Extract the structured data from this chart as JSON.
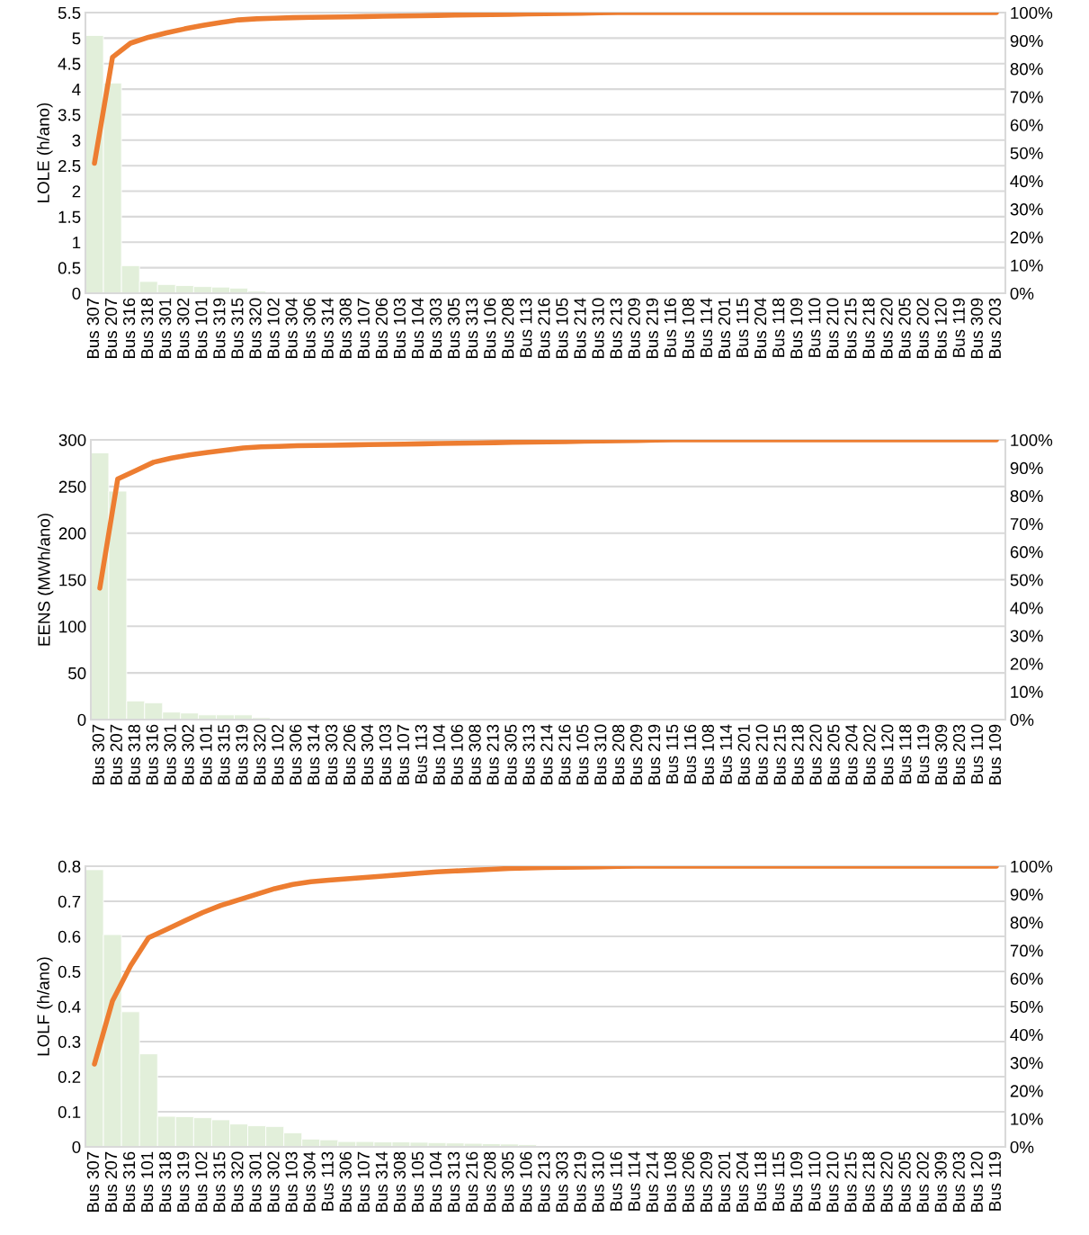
{
  "chart_data": [
    {
      "type": "bar",
      "ylabel": "LOLE (h/ano)",
      "categories": [
        "Bus 307",
        "Bus 207",
        "Bus 316",
        "Bus 318",
        "Bus 301",
        "Bus 302",
        "Bus 101",
        "Bus 319",
        "Bus 315",
        "Bus 320",
        "Bus 102",
        "Bus 304",
        "Bus 306",
        "Bus 314",
        "Bus 308",
        "Bus 107",
        "Bus 206",
        "Bus 103",
        "Bus 104",
        "Bus 303",
        "Bus 305",
        "Bus 313",
        "Bus 106",
        "Bus 208",
        "Bus 113",
        "Bus 216",
        "Bus 105",
        "Bus 214",
        "Bus 310",
        "Bus 213",
        "Bus 209",
        "Bus 219",
        "Bus 116",
        "Bus 108",
        "Bus 114",
        "Bus 201",
        "Bus 115",
        "Bus 204",
        "Bus 118",
        "Bus 109",
        "Bus 110",
        "Bus 210",
        "Bus 215",
        "Bus 218",
        "Bus 220",
        "Bus 205",
        "Bus 202",
        "Bus 120",
        "Bus 119",
        "Bus 309",
        "Bus 203"
      ],
      "series": [
        {
          "color": "#e2efda",
          "values": [
            5.05,
            4.12,
            0.54,
            0.23,
            0.17,
            0.15,
            0.13,
            0.12,
            0.1,
            0.04,
            0.02,
            0.02,
            0.01,
            0.01,
            0.01,
            0.01,
            0.01,
            0.01,
            0.01,
            0.01,
            0.01,
            0.01,
            0.01,
            0.01,
            0.01,
            0,
            0,
            0,
            0,
            0,
            0,
            0,
            0,
            0,
            0,
            0,
            0,
            0,
            0,
            0,
            0,
            0,
            0,
            0,
            0,
            0,
            0,
            0,
            0,
            0,
            0
          ]
        },
        {
          "type": "line",
          "axis": "y2",
          "color": "#ed7d31",
          "values": [
            46.3,
            84.1,
            89.1,
            91.2,
            92.8,
            94.2,
            95.4,
            96.5,
            97.4,
            97.8,
            98.0,
            98.2,
            98.3,
            98.4,
            98.5,
            98.6,
            98.7,
            98.8,
            98.9,
            99.0,
            99.1,
            99.2,
            99.3,
            99.4,
            99.5,
            99.6,
            99.7,
            99.8,
            99.9,
            100,
            100,
            100,
            100,
            100,
            100,
            100,
            100,
            100,
            100,
            100,
            100,
            100,
            100,
            100,
            100,
            100,
            100,
            100,
            100,
            100,
            100
          ]
        }
      ],
      "ylim": [
        0,
        5.5
      ],
      "yticks": [
        0,
        0.5,
        1,
        1.5,
        2,
        2.5,
        3,
        3.5,
        4,
        4.5,
        5,
        5.5
      ],
      "y2lim": [
        0,
        100
      ],
      "y2ticks": [
        {
          "value": 0,
          "label": "0%"
        },
        {
          "value": 10,
          "label": "10%"
        },
        {
          "value": 20,
          "label": "20%"
        },
        {
          "value": 30,
          "label": "30%"
        },
        {
          "value": 40,
          "label": "40%"
        },
        {
          "value": 50,
          "label": "50%"
        },
        {
          "value": 60,
          "label": "60%"
        },
        {
          "value": 70,
          "label": "70%"
        },
        {
          "value": 80,
          "label": "80%"
        },
        {
          "value": 90,
          "label": "90%"
        },
        {
          "value": 100,
          "label": "100%"
        }
      ],
      "grid": "y",
      "legend": false
    },
    {
      "type": "bar",
      "ylabel": "EENS (MWh/ano)",
      "categories": [
        "Bus 307",
        "Bus 207",
        "Bus 318",
        "Bus 316",
        "Bus 301",
        "Bus 302",
        "Bus 101",
        "Bus 315",
        "Bus 319",
        "Bus 320",
        "Bus 102",
        "Bus 306",
        "Bus 314",
        "Bus 303",
        "Bus 206",
        "Bus 304",
        "Bus 103",
        "Bus 107",
        "Bus 113",
        "Bus 104",
        "Bus 106",
        "Bus 308",
        "Bus 213",
        "Bus 305",
        "Bus 313",
        "Bus 214",
        "Bus 216",
        "Bus 105",
        "Bus 310",
        "Bus 208",
        "Bus 209",
        "Bus 219",
        "Bus 115",
        "Bus 116",
        "Bus 108",
        "Bus 114",
        "Bus 201",
        "Bus 210",
        "Bus 215",
        "Bus 218",
        "Bus 220",
        "Bus 205",
        "Bus 204",
        "Bus 202",
        "Bus 120",
        "Bus 118",
        "Bus 119",
        "Bus 309",
        "Bus 203",
        "Bus 110",
        "Bus 109"
      ],
      "series": [
        {
          "color": "#e2efda",
          "values": [
            286,
            245,
            20,
            18,
            8,
            7,
            5,
            5,
            5,
            2,
            1,
            1,
            1,
            1,
            1,
            1,
            1,
            1,
            0,
            0,
            0,
            0,
            0,
            0,
            0,
            0,
            0,
            0,
            0,
            0,
            0,
            0,
            0,
            0,
            0,
            0,
            0,
            0,
            0,
            0,
            0,
            0,
            0,
            0,
            0,
            0,
            0,
            0,
            0,
            0,
            0
          ]
        },
        {
          "type": "line",
          "axis": "y2",
          "color": "#ed7d31",
          "values": [
            47,
            86,
            89,
            92,
            93.5,
            94.6,
            95.5,
            96.3,
            97.1,
            97.5,
            97.7,
            97.9,
            98.0,
            98.1,
            98.2,
            98.3,
            98.4,
            98.5,
            98.6,
            98.7,
            98.8,
            98.9,
            99.0,
            99.1,
            99.2,
            99.3,
            99.4,
            99.5,
            99.6,
            99.7,
            99.8,
            99.9,
            100,
            100,
            100,
            100,
            100,
            100,
            100,
            100,
            100,
            100,
            100,
            100,
            100,
            100,
            100,
            100,
            100,
            100,
            100
          ]
        }
      ],
      "ylim": [
        0,
        300
      ],
      "yticks": [
        0,
        50,
        100,
        150,
        200,
        250,
        300
      ],
      "y2lim": [
        0,
        100
      ],
      "y2ticks": [
        {
          "value": 0,
          "label": "0%"
        },
        {
          "value": 10,
          "label": "10%"
        },
        {
          "value": 20,
          "label": "20%"
        },
        {
          "value": 30,
          "label": "30%"
        },
        {
          "value": 40,
          "label": "40%"
        },
        {
          "value": 50,
          "label": "50%"
        },
        {
          "value": 60,
          "label": "60%"
        },
        {
          "value": 70,
          "label": "70%"
        },
        {
          "value": 80,
          "label": "80%"
        },
        {
          "value": 90,
          "label": "90%"
        },
        {
          "value": 100,
          "label": "100%"
        }
      ],
      "grid": "y",
      "legend": false
    },
    {
      "type": "bar",
      "ylabel": "LOLF (h/ano)",
      "categories": [
        "Bus 307",
        "Bus 207",
        "Bus 316",
        "Bus 101",
        "Bus 318",
        "Bus 319",
        "Bus 102",
        "Bus 315",
        "Bus 320",
        "Bus 301",
        "Bus 302",
        "Bus 103",
        "Bus 304",
        "Bus 113",
        "Bus 306",
        "Bus 107",
        "Bus 314",
        "Bus 308",
        "Bus 105",
        "Bus 104",
        "Bus 313",
        "Bus 216",
        "Bus 208",
        "Bus 305",
        "Bus 106",
        "Bus 213",
        "Bus 303",
        "Bus 219",
        "Bus 310",
        "Bus 116",
        "Bus 114",
        "Bus 214",
        "Bus 108",
        "Bus 206",
        "Bus 209",
        "Bus 201",
        "Bus 204",
        "Bus 118",
        "Bus 115",
        "Bus 109",
        "Bus 110",
        "Bus 210",
        "Bus 215",
        "Bus 218",
        "Bus 220",
        "Bus 205",
        "Bus 202",
        "Bus 309",
        "Bus 203",
        "Bus 120",
        "Bus 119"
      ],
      "series": [
        {
          "color": "#e2efda",
          "values": [
            0.79,
            0.605,
            0.385,
            0.265,
            0.087,
            0.086,
            0.083,
            0.077,
            0.065,
            0.06,
            0.058,
            0.04,
            0.022,
            0.02,
            0.015,
            0.015,
            0.014,
            0.014,
            0.013,
            0.012,
            0.011,
            0.01,
            0.009,
            0.008,
            0.006,
            0.002,
            0,
            0,
            0,
            0,
            0,
            0,
            0,
            0,
            0,
            0,
            0,
            0,
            0,
            0,
            0,
            0,
            0,
            0,
            0,
            0,
            0,
            0,
            0,
            0,
            0
          ]
        },
        {
          "type": "line",
          "axis": "y2",
          "color": "#ed7d31",
          "values": [
            29.5,
            52,
            64.5,
            74.5,
            77.5,
            80.5,
            83.5,
            86,
            88,
            90,
            92,
            93.5,
            94.5,
            95,
            95.5,
            96,
            96.5,
            97,
            97.5,
            98,
            98.3,
            98.6,
            98.9,
            99.2,
            99.4,
            99.5,
            99.6,
            99.7,
            99.8,
            99.9,
            100,
            100,
            100,
            100,
            100,
            100,
            100,
            100,
            100,
            100,
            100,
            100,
            100,
            100,
            100,
            100,
            100,
            100,
            100,
            100,
            100
          ]
        }
      ],
      "ylim": [
        0,
        0.8
      ],
      "yticks": [
        0,
        0.1,
        0.2,
        0.3,
        0.4,
        0.5,
        0.6,
        0.7,
        0.8
      ],
      "y2lim": [
        0,
        100
      ],
      "y2ticks": [
        {
          "value": 0,
          "label": "0%"
        },
        {
          "value": 10,
          "label": "10%"
        },
        {
          "value": 20,
          "label": "20%"
        },
        {
          "value": 30,
          "label": "30%"
        },
        {
          "value": 40,
          "label": "40%"
        },
        {
          "value": 50,
          "label": "50%"
        },
        {
          "value": 60,
          "label": "60%"
        },
        {
          "value": 70,
          "label": "70%"
        },
        {
          "value": 80,
          "label": "80%"
        },
        {
          "value": 90,
          "label": "90%"
        },
        {
          "value": 100,
          "label": "100%"
        }
      ],
      "grid": "y",
      "legend": false
    }
  ]
}
